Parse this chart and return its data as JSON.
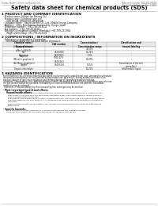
{
  "title": "Safety data sheet for chemical products (SDS)",
  "header_left": "Product Name: Lithium Ion Battery Cell",
  "header_right_line1": "Reference number: SDS-001-0001B",
  "header_right_line2": "Established / Revision: Dec.1.2010",
  "section1_title": "1 PRODUCT AND COMPANY IDENTIFICATION",
  "section1_items": [
    "Product name: Lithium Ion Battery Cell",
    "Product code: Cylindrical type cell",
    "  (UR18650A, UR18650Z, UR-B650A)",
    "Company name:   Sanyo Electric Co., Ltd., Mobile Energy Company",
    "Address:   2001, Kaminaizen, Sumoto-City, Hyogo, Japan",
    "Telephone number:   +81-799-26-4111",
    "Fax number:   +81-799-26-4120",
    "Emergency telephone number (Weekday) +81-799-26-3962",
    "  (Night and holiday) +81-799-26-4101"
  ],
  "section2_title": "2 COMPOSITIONS / INFORMATION ON INGREDIENTS",
  "section2_intro": "Substance or preparation: Preparation",
  "section2_sub": "Information about the chemical nature of product:",
  "table_header_row": [
    "Chemical name /\nGeneral name",
    "CAS number",
    "Concentration /\nConcentration range",
    "Classification and\nhazard labeling"
  ],
  "table_rows": [
    [
      "Lithium cobalt oxide\n(LiMn-Co-Ni-O4)",
      "-",
      "30-50%",
      "-"
    ],
    [
      "Iron",
      "7439-89-6",
      "15-25%",
      "-"
    ],
    [
      "Aluminum",
      "7429-90-5",
      "2-5%",
      "-"
    ],
    [
      "Graphite\n(Metal in graphite-1)\n(Ali-Mo in graphite-1)",
      "7782-42-5\n7440-44-0",
      "10-20%",
      "-"
    ],
    [
      "Copper",
      "7440-50-8",
      "5-15%",
      "Sensitization of the skin\ngroup No.2"
    ],
    [
      "Organic electrolyte",
      "-",
      "10-20%",
      "Inflammable liquid"
    ]
  ],
  "section3_title": "3 HAZARDS IDENTIFICATION",
  "section3_paras": [
    "For the battery cell, chemical materials are stored in a hermetically sealed metal case, designed to withstand",
    "temperatures and pressures encountered during normal use. As a result, during normal use, there is no",
    "physical danger of ignition or explosion and thermal danger of hazardous materials leakage.",
    "  However, if exposed to a fire, added mechanical shock, decomposed, when electro-stimulation may take use.",
    "the gas release cannot be operated. The battery cell case will be breached at fire patterns, hazardous",
    "materials may be released.",
    "  Moreover, if heated strongly by the surrounding fire, some gas may be emitted."
  ],
  "section3_bullet1": "Most important hazard and effects:",
  "section3_human_header": "Human health effects:",
  "section3_human_lines": [
    "Inhalation: The release of the electrolyte has an anesthesia action and stimulates a respiratory tract.",
    "Skin contact: The release of the electrolyte stimulates a skin. The electrolyte skin contact causes a",
    "sore and stimulation on the skin.",
    "Eye contact: The release of the electrolyte stimulates eyes. The electrolyte eye contact causes a sore",
    "and stimulation on the eye. Especially, a substance that causes a strong inflammation of the eyes is",
    "contained.",
    "Environmental effects: Since a battery cell remains in the environment, do not throw out it into the",
    "environment."
  ],
  "section3_bullet2": "Specific hazards:",
  "section3_specific_lines": [
    "If the electrolyte contacts with water, it will generate detrimental hydrogen fluoride.",
    "Since the used electrolyte is inflammable liquid, do not bring close to fire."
  ],
  "bg_color": "#ffffff",
  "text_color": "#111111",
  "gray_text": "#666666",
  "border_color": "#aaaaaa"
}
